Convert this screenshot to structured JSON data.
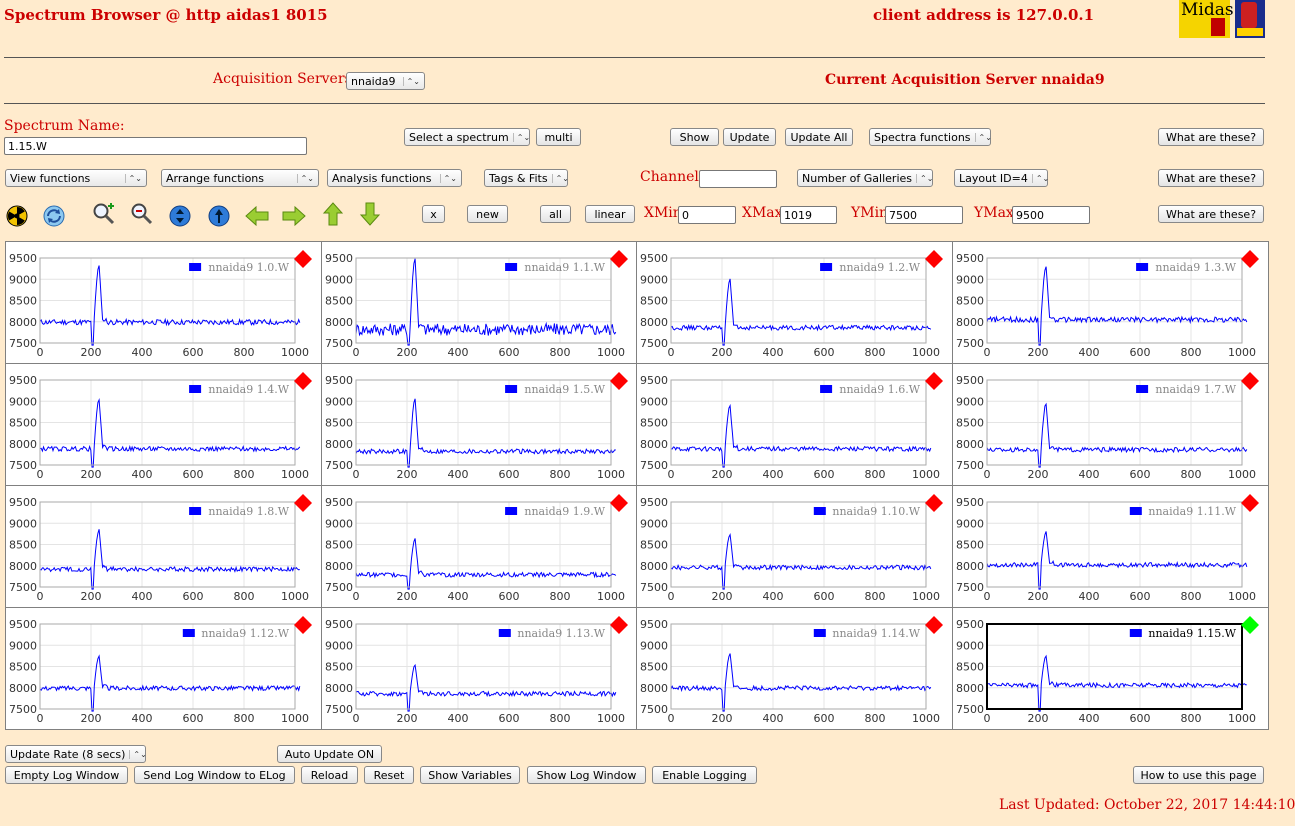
{
  "header": {
    "title": "Spectrum Browser @ http aidas1 8015",
    "client_address": "client address is 127.0.0.1",
    "logo_text": "Midas"
  },
  "servers": {
    "label": "Acquisition Servers",
    "selected": "nnaida9",
    "current_label": "Current Acquisition Server nnaida9"
  },
  "spectrum": {
    "name_label": "Spectrum Name:",
    "name_value": "1.15.W",
    "select_label": "Select a spectrum",
    "multi": "multi",
    "show": "Show",
    "update": "Update",
    "update_all": "Update All",
    "spectra_functions": "Spectra functions",
    "what": "What are these?"
  },
  "row2": {
    "view_functions": "View functions",
    "arrange_functions": "Arrange functions",
    "analysis_functions": "Analysis functions",
    "tags_fits": "Tags & Fits",
    "channel_label": "Channel:",
    "channel_value": "",
    "galleries": "Number of Galleries",
    "layout": "Layout ID=4",
    "what": "What are these?"
  },
  "row3": {
    "icons": [
      "radiation-icon",
      "refresh-icon",
      "zoom-in-icon",
      "zoom-out-icon",
      "expand-vertical-icon",
      "expand-horizontal-icon",
      "arrow-left-icon",
      "arrow-right-icon",
      "arrow-up-icon",
      "arrow-down-icon"
    ],
    "x": "x",
    "new": "new",
    "all": "all",
    "linear": "linear",
    "xmin_label": "XMin",
    "xmin": "0",
    "xmax_label": "XMax",
    "xmax": "1019",
    "ymin_label": "YMin",
    "ymin": "7500",
    "ymax_label": "YMax",
    "ymax": "9500",
    "what": "What are these?"
  },
  "colors": {
    "background": "#FFEBCD",
    "label_red": "#CC0000",
    "trace": "#0000FF",
    "marker_red": "#FF0000",
    "marker_green": "#00FF00"
  },
  "gallery": {
    "x_ticks": [
      "0",
      "200",
      "400",
      "600",
      "800",
      "1000"
    ],
    "y_ticks": [
      "9500",
      "9000",
      "8500",
      "8000",
      "7500"
    ],
    "panels": [
      {
        "legend": "nnaida9 1.0.W",
        "selected": false,
        "peak": 9330,
        "noise": 70,
        "base": 7990
      },
      {
        "legend": "nnaida9 1.1.W",
        "selected": false,
        "peak": 9500,
        "noise": 160,
        "base": 7820
      },
      {
        "legend": "nnaida9 1.2.W",
        "selected": false,
        "peak": 9000,
        "noise": 60,
        "base": 7860
      },
      {
        "legend": "nnaida9 1.3.W",
        "selected": false,
        "peak": 9300,
        "noise": 70,
        "base": 8050
      },
      {
        "legend": "nnaida9 1.4.W",
        "selected": false,
        "peak": 9050,
        "noise": 60,
        "base": 7880
      },
      {
        "legend": "nnaida9 1.5.W",
        "selected": false,
        "peak": 9050,
        "noise": 60,
        "base": 7820
      },
      {
        "legend": "nnaida9 1.6.W",
        "selected": false,
        "peak": 8900,
        "noise": 60,
        "base": 7880
      },
      {
        "legend": "nnaida9 1.7.W",
        "selected": false,
        "peak": 8950,
        "noise": 60,
        "base": 7860
      },
      {
        "legend": "nnaida9 1.8.W",
        "selected": false,
        "peak": 8850,
        "noise": 60,
        "base": 7920
      },
      {
        "legend": "nnaida9 1.9.W",
        "selected": false,
        "peak": 8650,
        "noise": 60,
        "base": 7790
      },
      {
        "legend": "nnaida9 1.10.W",
        "selected": false,
        "peak": 8750,
        "noise": 60,
        "base": 7960
      },
      {
        "legend": "nnaida9 1.11.W",
        "selected": false,
        "peak": 8800,
        "noise": 60,
        "base": 8020
      },
      {
        "legend": "nnaida9 1.12.W",
        "selected": false,
        "peak": 8750,
        "noise": 60,
        "base": 7990
      },
      {
        "legend": "nnaida9 1.13.W",
        "selected": false,
        "peak": 8550,
        "noise": 60,
        "base": 7860
      },
      {
        "legend": "nnaida9 1.14.W",
        "selected": false,
        "peak": 8800,
        "noise": 60,
        "base": 7990
      },
      {
        "legend": "nnaida9 1.15.W",
        "selected": true,
        "peak": 8750,
        "noise": 60,
        "base": 8060
      }
    ]
  },
  "footer": {
    "update_rate": "Update Rate (8 secs)",
    "auto_update": "Auto Update ON",
    "empty_log": "Empty Log Window",
    "send_log": "Send Log Window to ELog",
    "reload": "Reload",
    "reset": "Reset",
    "show_variables": "Show Variables",
    "show_log": "Show Log Window",
    "enable_logging": "Enable Logging",
    "how_to": "How to use this page",
    "last_updated": "Last Updated: October 22, 2017 14:44:10"
  }
}
